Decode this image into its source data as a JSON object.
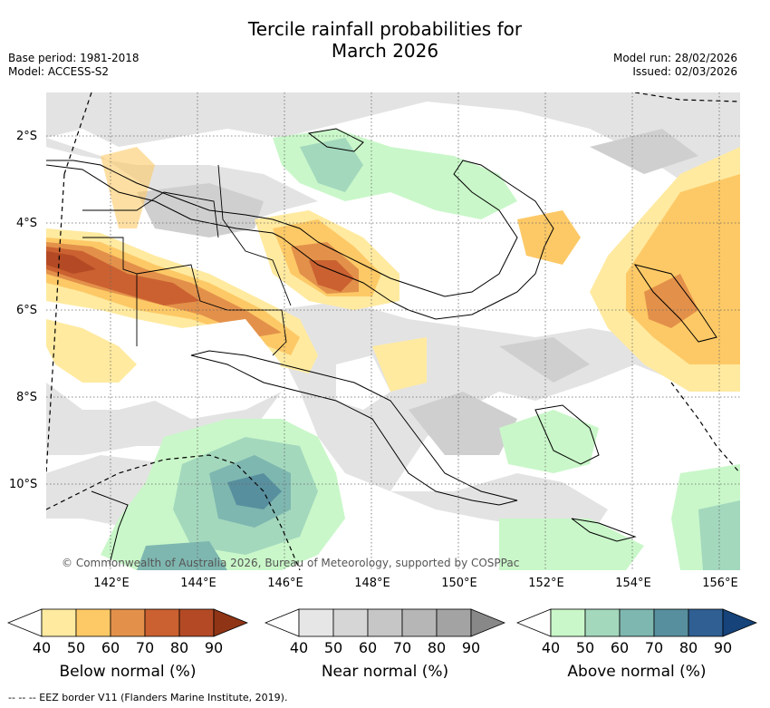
{
  "header": {
    "title_line1": "Tercile rainfall probabilities for",
    "title_line2": "March 2026",
    "base_period": "Base period: 1981-2018",
    "model": "Model: ACCESS-S2",
    "model_run": "Model run: 28/02/2026",
    "issued": "Issued: 02/03/2026"
  },
  "map": {
    "lat_labels": [
      "2°S",
      "4°S",
      "6°S",
      "8°S",
      "10°S"
    ],
    "lon_labels": [
      "142°E",
      "144°E",
      "146°E",
      "148°E",
      "150°E",
      "152°E",
      "154°E",
      "156°E"
    ],
    "copyright": "© Commonwealth of Australia 2026, Bureau of Meteorology, supported by COSPPac"
  },
  "legends": [
    {
      "title": "Below normal (%)",
      "ticks": [
        "40",
        "50",
        "60",
        "70",
        "80",
        "90"
      ],
      "colors": [
        "#ffffff",
        "#ffeaa0",
        "#fdc966",
        "#e3914a",
        "#cb6131",
        "#b34a25",
        "#8f3515"
      ]
    },
    {
      "title": "Near normal (%)",
      "ticks": [
        "40",
        "50",
        "60",
        "70",
        "80",
        "90"
      ],
      "colors": [
        "#ffffff",
        "#e6e6e6",
        "#d6d6d6",
        "#c6c6c6",
        "#b6b6b6",
        "#a3a3a3",
        "#888888"
      ]
    },
    {
      "title": "Above normal (%)",
      "ticks": [
        "40",
        "50",
        "60",
        "70",
        "80",
        "90"
      ],
      "colors": [
        "#ffffff",
        "#c9f7c9",
        "#a3d8bd",
        "#7eb7b0",
        "#588f9e",
        "#2f5f93",
        "#15437a"
      ]
    }
  ],
  "footnote": "--  --  -- EEZ border V11 (Flanders Marine Institute, 2019)."
}
